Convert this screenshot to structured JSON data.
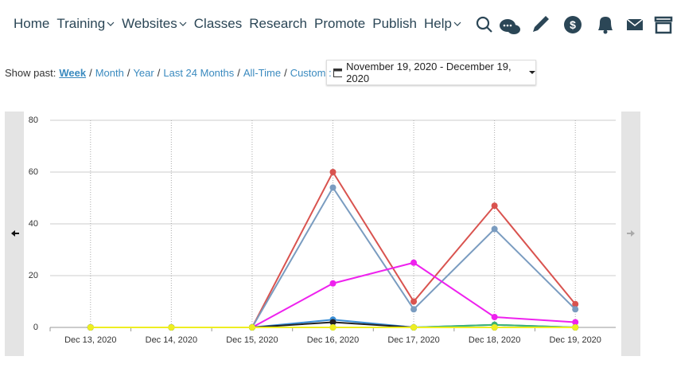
{
  "nav": [
    {
      "label": "Home",
      "dropdown": false
    },
    {
      "label": "Training",
      "dropdown": true
    },
    {
      "label": "Websites",
      "dropdown": true
    },
    {
      "label": "Classes",
      "dropdown": false
    },
    {
      "label": "Research",
      "dropdown": false
    },
    {
      "label": "Promote",
      "dropdown": false
    },
    {
      "label": "Publish",
      "dropdown": false
    },
    {
      "label": "Help",
      "dropdown": true
    }
  ],
  "filter": {
    "label": "Show past:",
    "separator": "/",
    "options": [
      "Week",
      "Month",
      "Year",
      "Last 24 Months",
      "All-Time",
      "Custom :"
    ],
    "active": 0
  },
  "date_range": "November 19, 2020 - December 19, 2020",
  "chart_data": {
    "type": "line",
    "categories": [
      "Dec 13, 2020",
      "Dec 14, 2020",
      "Dec 15, 2020",
      "Dec 16, 2020",
      "Dec 17, 2020",
      "Dec 18, 2020",
      "Dec 19, 2020"
    ],
    "ylim": [
      0,
      80
    ],
    "yticks": [
      0,
      20,
      40,
      60,
      80
    ],
    "grid": true,
    "series": [
      {
        "color": "#d9534f",
        "values": [
          0,
          0,
          0,
          60,
          10,
          47,
          9
        ]
      },
      {
        "color": "#7a9cc0",
        "values": [
          0,
          0,
          0,
          54,
          7,
          38,
          7
        ]
      },
      {
        "color": "#ee22ee",
        "values": [
          0,
          0,
          0,
          17,
          25,
          4,
          2
        ]
      },
      {
        "color": "#3a8fd8",
        "values": [
          0,
          0,
          0,
          3,
          0,
          1,
          0
        ]
      },
      {
        "color": "#222222",
        "values": [
          0,
          0,
          0,
          2,
          0,
          0,
          0
        ]
      },
      {
        "color": "#3cb371",
        "values": [
          0,
          0,
          0,
          0,
          0,
          1,
          0
        ]
      },
      {
        "color": "#eeee22",
        "values": [
          0,
          0,
          0,
          0,
          0,
          0,
          0
        ]
      }
    ]
  }
}
